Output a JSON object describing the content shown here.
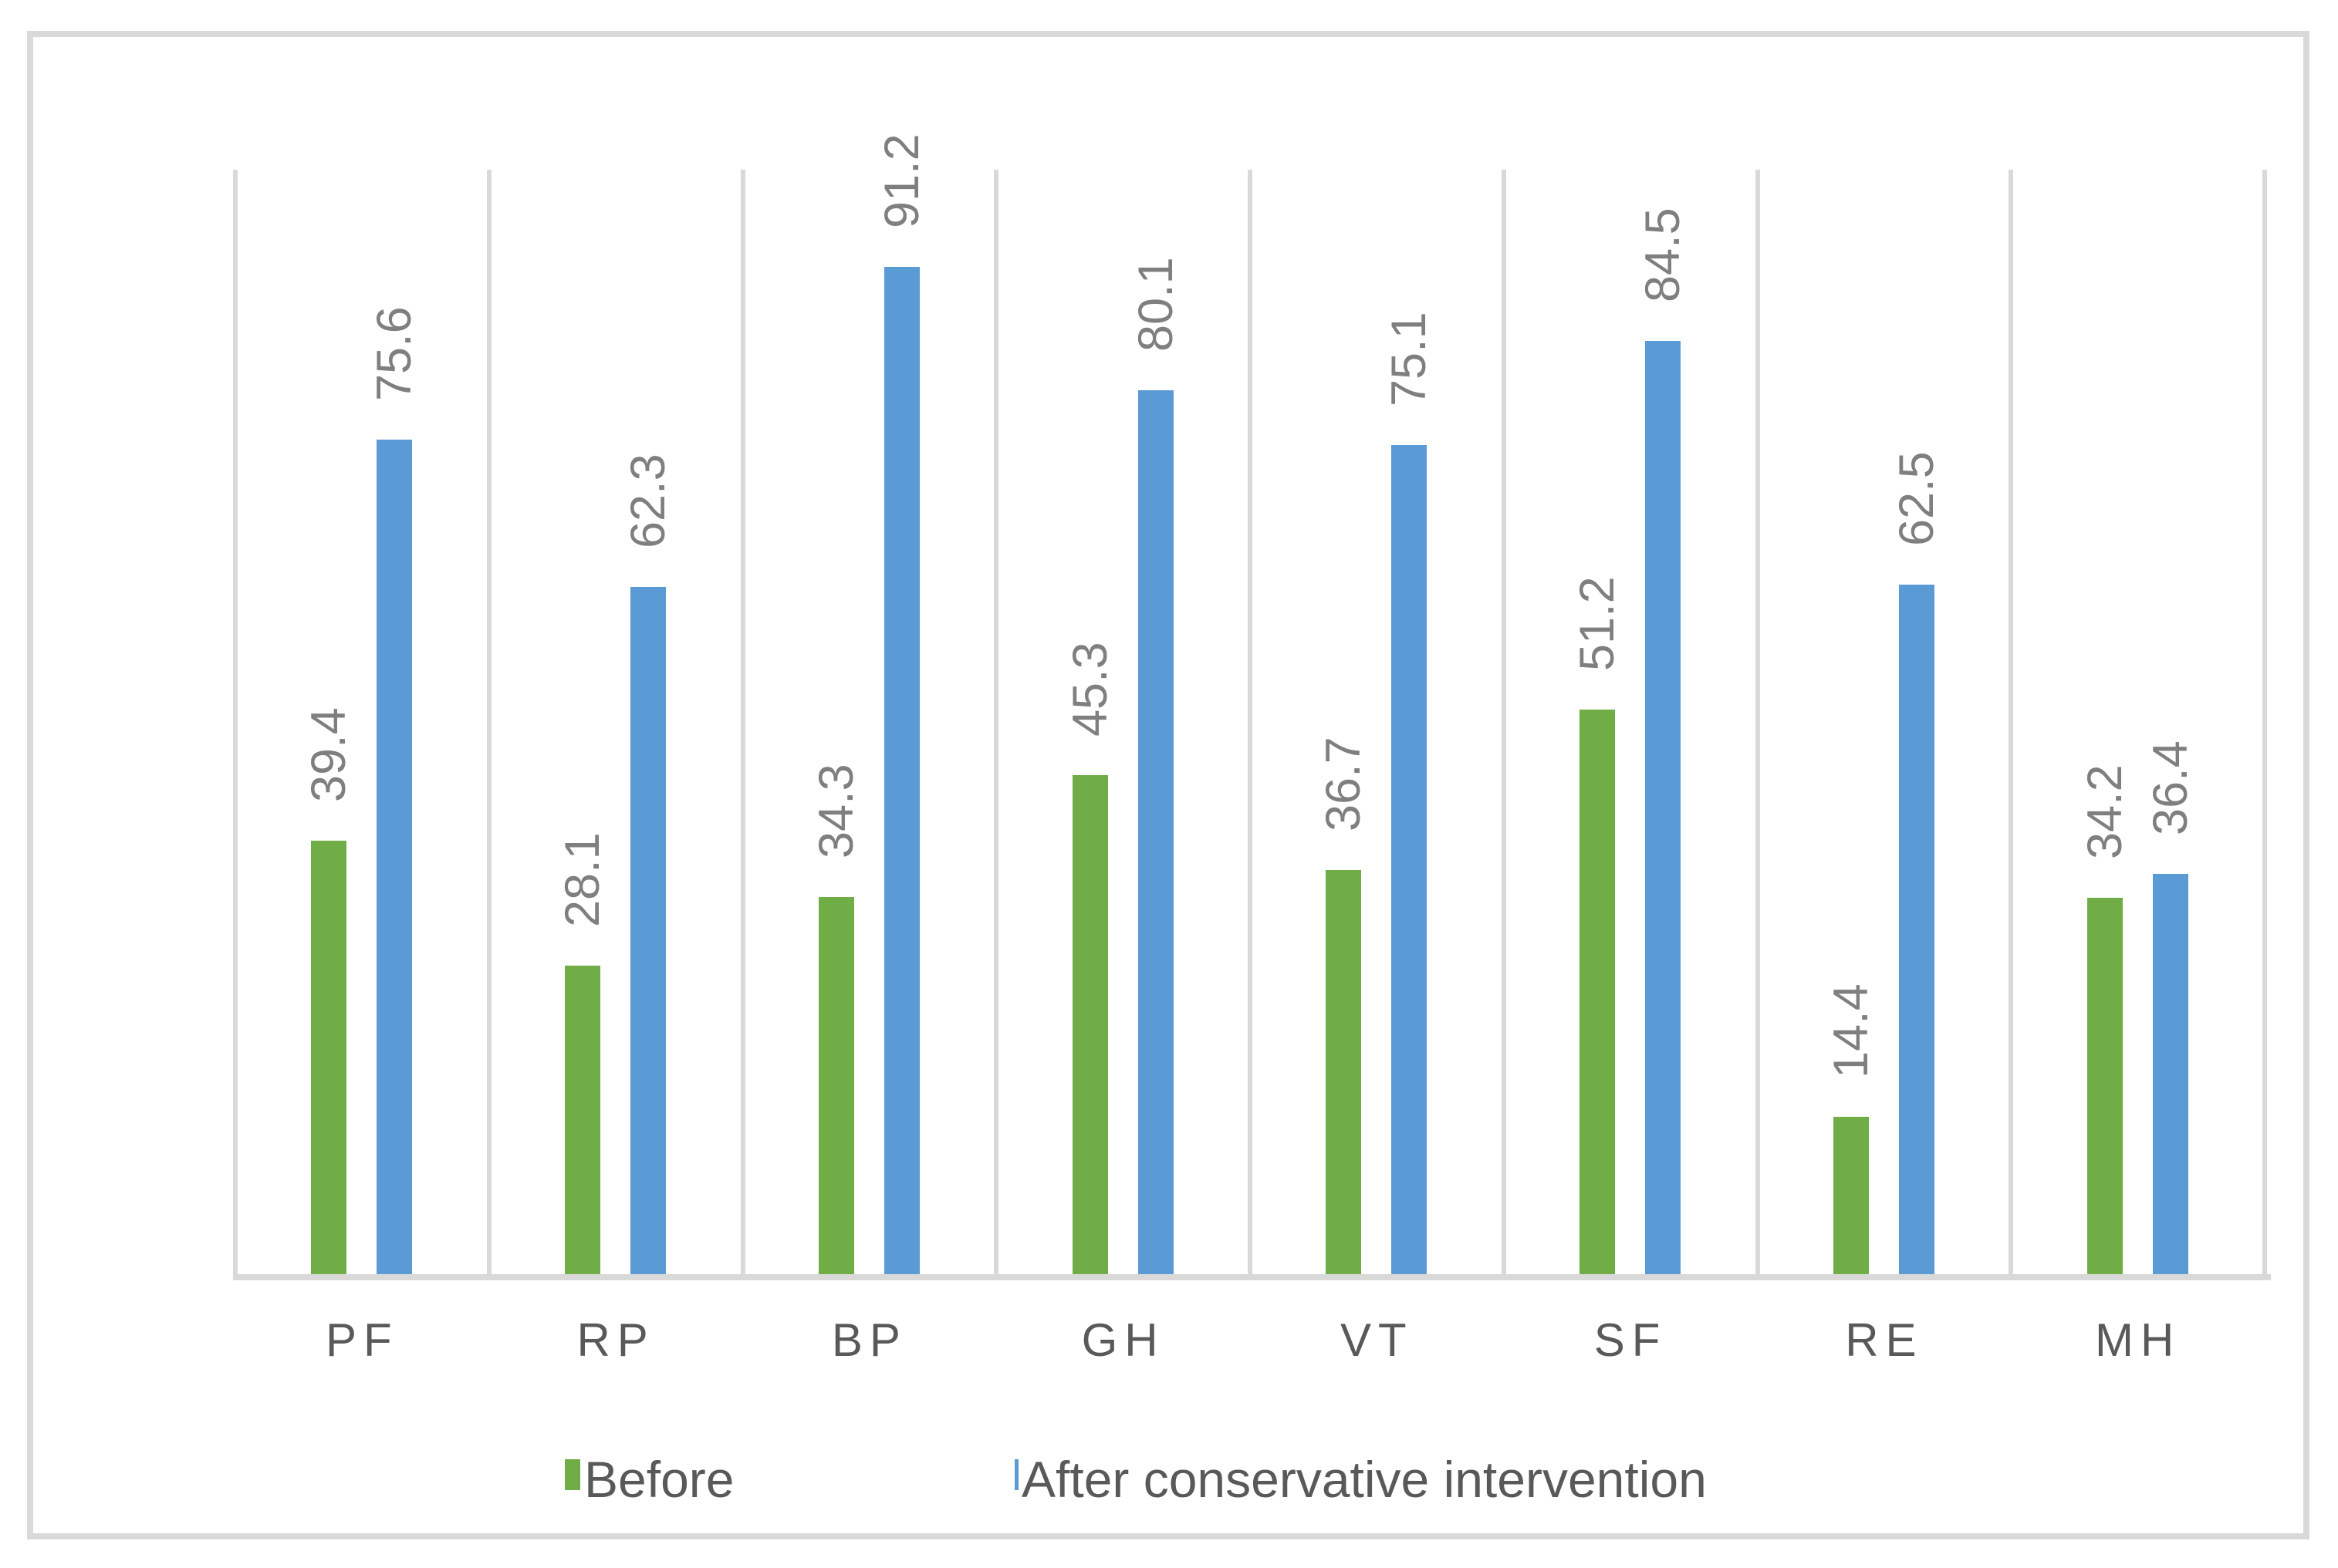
{
  "window": {
    "background": "#ffffff",
    "frame_border_color": "#d9d9d9"
  },
  "chart_data": {
    "type": "bar",
    "title": "",
    "categories": [
      "PF",
      "RP",
      "BP",
      "GH",
      "VT",
      "SF",
      "RE",
      "MH"
    ],
    "series": [
      {
        "name": "Before",
        "color": "#70AD47",
        "values": [
          39.4,
          28.1,
          34.3,
          45.3,
          36.7,
          51.2,
          14.4,
          34.2
        ]
      },
      {
        "name": "After conservative intervention",
        "color": "#5B9BD5",
        "values": [
          75.6,
          62.3,
          91.2,
          80.1,
          75.1,
          84.5,
          62.5,
          36.4
        ]
      }
    ],
    "ylim": [
      0,
      100
    ],
    "y_axis_visible": false,
    "grid": {
      "vertical_category_separators": true,
      "color": "#d9d9d9"
    },
    "axis_line_color": "#d9d9d9",
    "data_labels": {
      "rotation_deg": -90,
      "color": "#7f7f7f",
      "decimals": 1
    },
    "x_tick_label_color": "#595959",
    "legend_position": "bottom"
  }
}
